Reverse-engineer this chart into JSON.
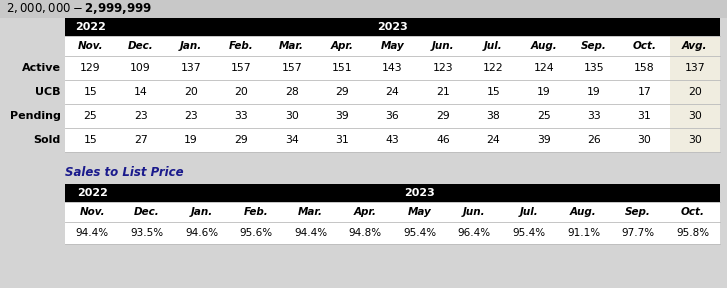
{
  "title": "$2,000,000 - $2,999,999",
  "title_bg": "#c8c8c8",
  "black": "#000000",
  "white": "#ffffff",
  "avg_bg": "#f0ede0",
  "light_gray_bg": "#f5f5f5",
  "row_labels": [
    "Active",
    "UCB",
    "Pending",
    "Sold"
  ],
  "col_headers": [
    "Nov.",
    "Dec.",
    "Jan.",
    "Feb.",
    "Mar.",
    "Apr.",
    "May",
    "Jun.",
    "Jul.",
    "Aug.",
    "Sep.",
    "Oct.",
    "Avg."
  ],
  "data": [
    [
      129,
      109,
      137,
      157,
      157,
      151,
      143,
      123,
      122,
      124,
      135,
      158,
      137
    ],
    [
      15,
      14,
      20,
      20,
      28,
      29,
      24,
      21,
      15,
      19,
      19,
      17,
      20
    ],
    [
      25,
      23,
      23,
      33,
      30,
      39,
      36,
      29,
      38,
      25,
      33,
      31,
      30
    ],
    [
      15,
      27,
      19,
      29,
      34,
      31,
      43,
      46,
      24,
      39,
      26,
      30,
      30
    ]
  ],
  "sales_title": "Sales to List Price",
  "sales_col_headers": [
    "Nov.",
    "Dec.",
    "Jan.",
    "Feb.",
    "Mar.",
    "Apr.",
    "May",
    "Jun.",
    "Jul.",
    "Aug.",
    "Sep.",
    "Oct."
  ],
  "sales_data": [
    "94.4%",
    "93.5%",
    "94.6%",
    "95.6%",
    "94.4%",
    "94.8%",
    "95.4%",
    "96.4%",
    "95.4%",
    "91.1%",
    "97.7%",
    "95.8%"
  ]
}
